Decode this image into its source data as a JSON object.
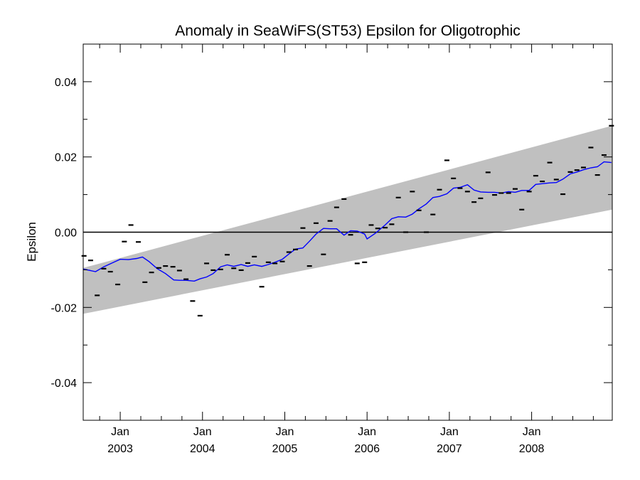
{
  "chart_data": {
    "type": "line",
    "title": "Anomaly in SeaWiFS(ST53) Epsilon for Oligotrophic",
    "xlabel": "",
    "ylabel": "Epsilon",
    "xlim": [
      2002.55,
      2008.98
    ],
    "ylim": [
      -0.05,
      0.05
    ],
    "y_ticks": [
      -0.04,
      -0.02,
      0.0,
      0.02,
      0.04
    ],
    "y_tick_labels": [
      "-0.04",
      "-0.02",
      "0.00",
      "0.02",
      "0.04"
    ],
    "x_ticks": [
      {
        "x": 2003.0,
        "month": "Jan",
        "year": "2003"
      },
      {
        "x": 2004.0,
        "month": "Jan",
        "year": "2004"
      },
      {
        "x": 2005.0,
        "month": "Jan",
        "year": "2005"
      },
      {
        "x": 2006.0,
        "month": "Jan",
        "year": "2006"
      },
      {
        "x": 2007.0,
        "month": "Jan",
        "year": "2007"
      },
      {
        "x": 2008.0,
        "month": "Jan",
        "year": "2008"
      }
    ],
    "x_minor_step": 0.25,
    "y_minor_step": 0.01,
    "zero_line": 0.0,
    "band": {
      "x": [
        2002.55,
        2008.98
      ],
      "lower": [
        -0.0217,
        0.006
      ],
      "upper": [
        -0.0095,
        0.0283
      ],
      "color": "#c0c0c0"
    },
    "series": [
      {
        "kind": "monthly_points",
        "color": "#000000",
        "x": [
          2002.56,
          2002.64,
          2002.72,
          2002.8,
          2002.88,
          2002.97,
          2003.05,
          2003.13,
          2003.22,
          2003.3,
          2003.38,
          2003.47,
          2003.55,
          2003.64,
          2003.72,
          2003.8,
          2003.88,
          2003.97,
          2004.05,
          2004.13,
          2004.22,
          2004.3,
          2004.38,
          2004.47,
          2004.55,
          2004.63,
          2004.72,
          2004.8,
          2004.88,
          2004.97,
          2005.05,
          2005.13,
          2005.22,
          2005.3,
          2005.38,
          2005.47,
          2005.55,
          2005.63,
          2005.72,
          2005.8,
          2005.88,
          2005.97,
          2006.05,
          2006.13,
          2006.22,
          2006.3,
          2006.38,
          2006.47,
          2006.55,
          2006.63,
          2006.72,
          2006.8,
          2006.88,
          2006.97,
          2007.05,
          2007.13,
          2007.22,
          2007.3,
          2007.38,
          2007.47,
          2007.55,
          2007.63,
          2007.72,
          2007.8,
          2007.88,
          2007.97,
          2008.05,
          2008.13,
          2008.22,
          2008.3,
          2008.38,
          2008.47,
          2008.55,
          2008.63,
          2008.72,
          2008.8,
          2008.88,
          2008.97
        ],
        "y": [
          -0.0063,
          -0.0075,
          -0.0168,
          -0.0097,
          -0.0105,
          -0.0139,
          -0.0025,
          0.0019,
          -0.0026,
          -0.0133,
          -0.0107,
          -0.0095,
          -0.009,
          -0.0092,
          -0.0102,
          -0.0125,
          -0.0183,
          -0.0222,
          -0.0083,
          -0.0101,
          -0.0099,
          -0.006,
          -0.0096,
          -0.0101,
          -0.0082,
          -0.0065,
          -0.0145,
          -0.008,
          -0.0083,
          -0.0078,
          -0.0053,
          -0.0046,
          0.0011,
          -0.009,
          0.0024,
          -0.0059,
          0.003,
          0.0066,
          0.0088,
          -0.0007,
          -0.0083,
          -0.008,
          0.0019,
          0.001,
          0.0012,
          0.0021,
          0.0092,
          0.0,
          0.0108,
          0.0058,
          0.0,
          0.0047,
          0.0113,
          0.0191,
          0.0143,
          0.0117,
          0.0108,
          0.008,
          0.009,
          0.0159,
          0.0099,
          0.0104,
          0.0104,
          0.0115,
          0.006,
          0.0108,
          0.015,
          0.0135,
          0.0185,
          0.014,
          0.0101,
          0.016,
          0.0165,
          0.0172,
          0.0225,
          0.0152,
          0.0205,
          0.0283
        ]
      },
      {
        "kind": "running_mean",
        "color": "#0000ff",
        "x": [
          2002.55,
          2002.7,
          2002.8,
          2002.9,
          2003.0,
          2003.1,
          2003.2,
          2003.27,
          2003.35,
          2003.45,
          2003.55,
          2003.65,
          2003.72,
          2003.8,
          2003.9,
          2003.97,
          2004.05,
          2004.13,
          2004.22,
          2004.3,
          2004.38,
          2004.47,
          2004.55,
          2004.63,
          2004.72,
          2004.8,
          2004.88,
          2004.97,
          2005.05,
          2005.13,
          2005.22,
          2005.3,
          2005.38,
          2005.47,
          2005.55,
          2005.63,
          2005.72,
          2005.8,
          2005.88,
          2005.97,
          2006.0,
          2006.1,
          2006.22,
          2006.3,
          2006.38,
          2006.47,
          2006.55,
          2006.63,
          2006.72,
          2006.8,
          2006.88,
          2006.97,
          2007.05,
          2007.13,
          2007.22,
          2007.3,
          2007.38,
          2007.47,
          2007.55,
          2007.63,
          2007.72,
          2007.8,
          2007.88,
          2007.97,
          2008.05,
          2008.13,
          2008.22,
          2008.3,
          2008.38,
          2008.47,
          2008.55,
          2008.63,
          2008.72,
          2008.8,
          2008.88,
          2008.97
        ],
        "y": [
          -0.0098,
          -0.0105,
          -0.0092,
          -0.0082,
          -0.0072,
          -0.0073,
          -0.007,
          -0.0066,
          -0.0078,
          -0.0097,
          -0.011,
          -0.0127,
          -0.0128,
          -0.0128,
          -0.013,
          -0.0124,
          -0.0119,
          -0.011,
          -0.0092,
          -0.0087,
          -0.0091,
          -0.0086,
          -0.0091,
          -0.0087,
          -0.0091,
          -0.0086,
          -0.008,
          -0.0072,
          -0.0058,
          -0.0045,
          -0.0042,
          -0.0024,
          -0.0005,
          0.001,
          0.0009,
          0.0009,
          -0.0008,
          0.0004,
          0.0003,
          -0.0005,
          -0.0018,
          -0.0003,
          0.0019,
          0.0036,
          0.0041,
          0.004,
          0.0048,
          0.0062,
          0.0075,
          0.0092,
          0.0095,
          0.0102,
          0.0117,
          0.0119,
          0.0126,
          0.0112,
          0.0107,
          0.0106,
          0.0106,
          0.0104,
          0.0108,
          0.0106,
          0.0111,
          0.0111,
          0.0127,
          0.0129,
          0.0131,
          0.0132,
          0.0141,
          0.0155,
          0.016,
          0.0166,
          0.0171,
          0.0174,
          0.0187,
          0.0185
        ]
      }
    ]
  }
}
